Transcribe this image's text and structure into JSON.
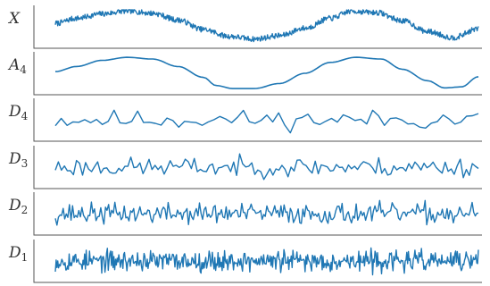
{
  "chart_data": {
    "type": "line",
    "line_color": "#1f77b4",
    "axis_color": "#555555",
    "label_color": "#333333",
    "grid": false,
    "panels": [
      {
        "label_main": "X",
        "label_sub": "",
        "kind": "noisy_wave",
        "series": [
          {
            "x": 0.0,
            "y": 0.6
          },
          {
            "x": 0.05,
            "y": 0.75
          },
          {
            "x": 0.11,
            "y": 0.88
          },
          {
            "x": 0.17,
            "y": 0.97
          },
          {
            "x": 0.23,
            "y": 0.9
          },
          {
            "x": 0.29,
            "y": 0.7
          },
          {
            "x": 0.35,
            "y": 0.42
          },
          {
            "x": 0.41,
            "y": 0.22
          },
          {
            "x": 0.47,
            "y": 0.14
          },
          {
            "x": 0.53,
            "y": 0.24
          },
          {
            "x": 0.59,
            "y": 0.46
          },
          {
            "x": 0.65,
            "y": 0.75
          },
          {
            "x": 0.7,
            "y": 0.96
          },
          {
            "x": 0.76,
            "y": 0.92
          },
          {
            "x": 0.82,
            "y": 0.68
          },
          {
            "x": 0.88,
            "y": 0.36
          },
          {
            "x": 0.94,
            "y": 0.18
          },
          {
            "x": 1.0,
            "y": 0.44
          }
        ]
      },
      {
        "label_main": "A",
        "label_sub": "4",
        "kind": "smooth",
        "series": [
          {
            "x": 0.0,
            "y": 0.55
          },
          {
            "x": 0.05,
            "y": 0.7
          },
          {
            "x": 0.11,
            "y": 0.88
          },
          {
            "x": 0.17,
            "y": 0.97
          },
          {
            "x": 0.23,
            "y": 0.92
          },
          {
            "x": 0.29,
            "y": 0.7
          },
          {
            "x": 0.35,
            "y": 0.38
          },
          {
            "x": 0.38,
            "y": 0.14
          },
          {
            "x": 0.42,
            "y": 0.05
          },
          {
            "x": 0.47,
            "y": 0.05
          },
          {
            "x": 0.53,
            "y": 0.2
          },
          {
            "x": 0.59,
            "y": 0.5
          },
          {
            "x": 0.65,
            "y": 0.82
          },
          {
            "x": 0.71,
            "y": 0.97
          },
          {
            "x": 0.77,
            "y": 0.92
          },
          {
            "x": 0.82,
            "y": 0.62
          },
          {
            "x": 0.88,
            "y": 0.28
          },
          {
            "x": 0.92,
            "y": 0.07
          },
          {
            "x": 0.96,
            "y": 0.1
          },
          {
            "x": 1.0,
            "y": 0.4
          }
        ]
      },
      {
        "label_main": "D",
        "label_sub": "4",
        "kind": "jagged",
        "points": 72,
        "amplitude": 0.42,
        "seed": 11
      },
      {
        "label_main": "D",
        "label_sub": "3",
        "kind": "jagged",
        "points": 140,
        "amplitude": 0.42,
        "seed": 23
      },
      {
        "label_main": "D",
        "label_sub": "2",
        "kind": "jagged",
        "points": 270,
        "amplitude": 0.45,
        "seed": 37
      },
      {
        "label_main": "D",
        "label_sub": "1",
        "kind": "jagged",
        "points": 520,
        "amplitude": 0.45,
        "seed": 53
      }
    ]
  }
}
